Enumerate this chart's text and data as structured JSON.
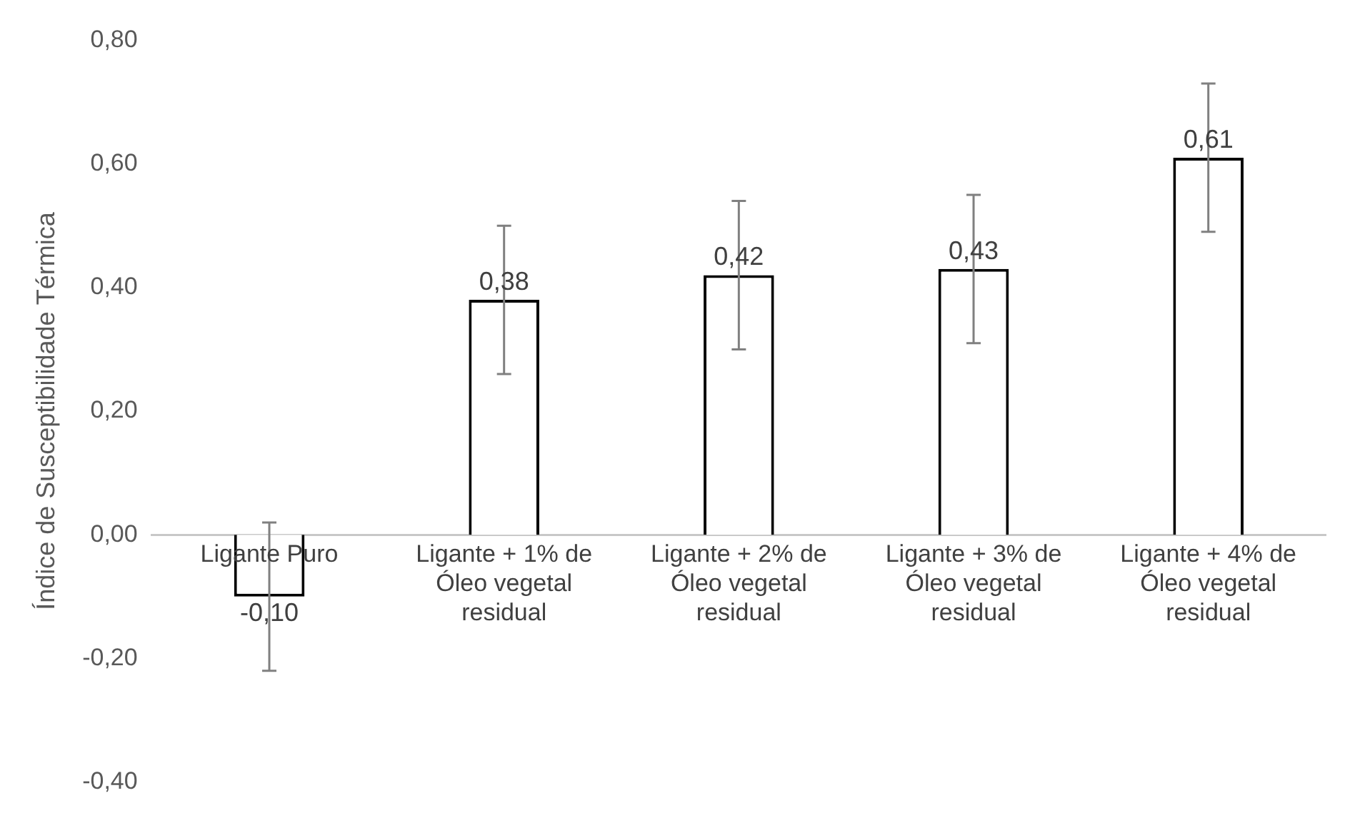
{
  "chart_data": {
    "type": "bar",
    "ylabel": "Índice de Susceptibilidade Térmica",
    "categories": [
      "Ligante Puro",
      "Ligante + 1% de Óleo vegetal residual",
      "Ligante + 2% de Óleo vegetal residual",
      "Ligante + 3% de Óleo vegetal residual",
      "Ligante + 4% de Óleo vegetal residual"
    ],
    "values": [
      -0.1,
      0.38,
      0.42,
      0.43,
      0.61
    ],
    "errors": [
      0.12,
      0.12,
      0.12,
      0.12,
      0.12
    ],
    "value_labels": [
      "-0,10",
      "0,38",
      "0,42",
      "0,43",
      "0,61"
    ],
    "color": "#ffffff",
    "ylim": [
      -0.4,
      0.8
    ],
    "yticks": [
      {
        "value": -0.4,
        "label": "-0,40"
      },
      {
        "value": -0.2,
        "label": "-0,20"
      },
      {
        "value": 0,
        "label": "0,00"
      },
      {
        "value": 0.2,
        "label": "0,20"
      },
      {
        "value": 0.4,
        "label": "0,40"
      },
      {
        "value": 0.6,
        "label": "0,60"
      },
      {
        "value": 0.8,
        "label": "0,80"
      }
    ],
    "grid": false,
    "legend": false
  }
}
